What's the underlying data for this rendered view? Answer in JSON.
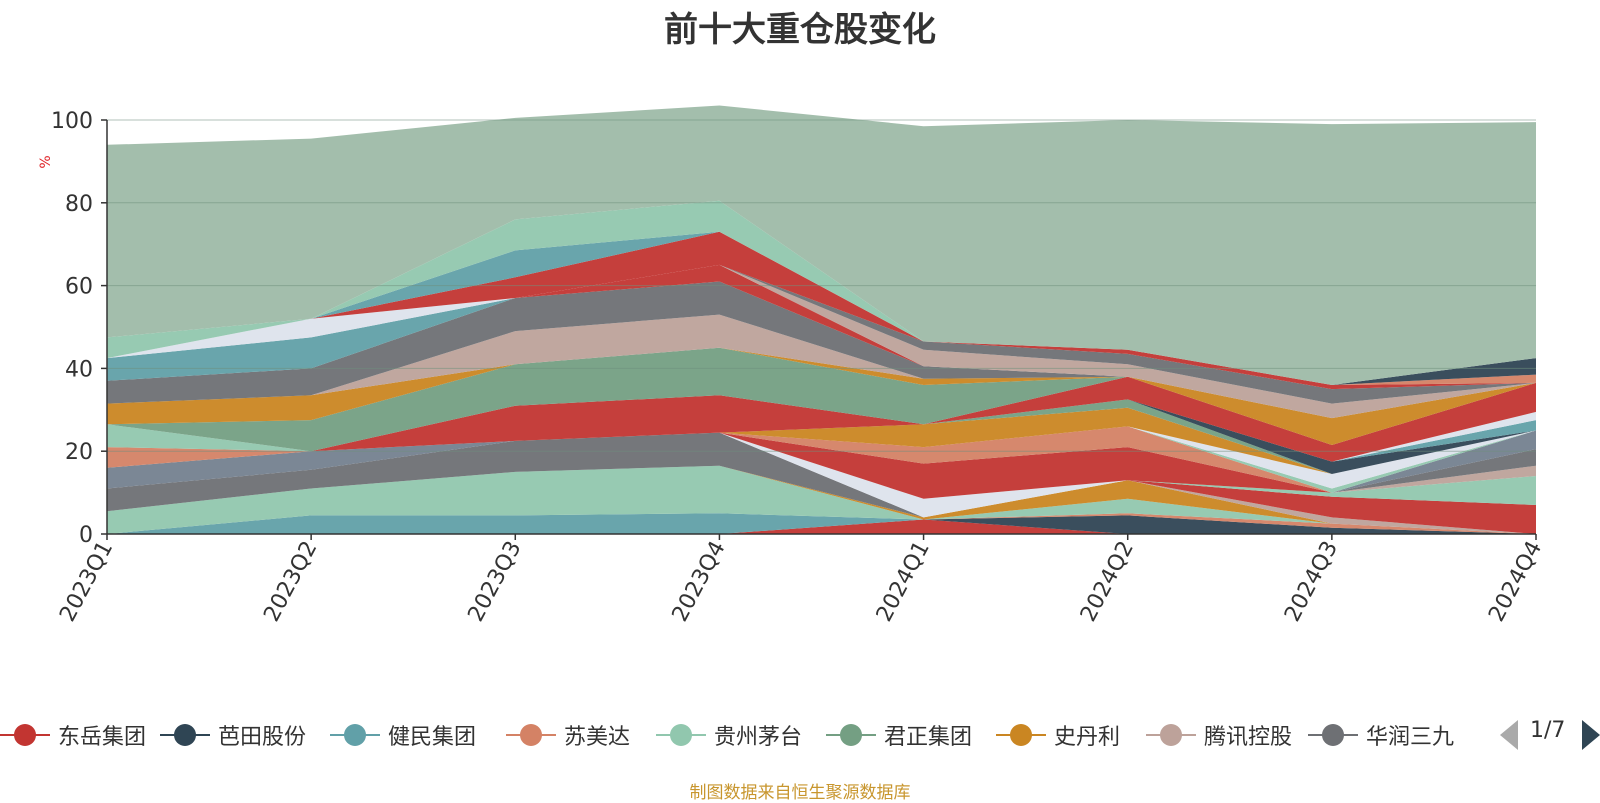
{
  "title": "前十大重仓股变化",
  "source_note": "制图数据来自恒生聚源数据库",
  "pager": {
    "text": "1/7"
  },
  "legend_items": [
    {
      "label": "东岳集团",
      "color": "#c23531"
    },
    {
      "label": "芭田股份",
      "color": "#2f4554"
    },
    {
      "label": "健民集团",
      "color": "#61a0a8"
    },
    {
      "label": "苏美达",
      "color": "#d48265"
    },
    {
      "label": "贵州茅台",
      "color": "#91c7ae"
    },
    {
      "label": "君正集团",
      "color": "#749f83"
    },
    {
      "label": "史丹利",
      "color": "#ca8622"
    },
    {
      "label": "腾讯控股",
      "color": "#bda29a"
    },
    {
      "label": "华润三九",
      "color": "#6e7074"
    }
  ],
  "chart_data": {
    "type": "area",
    "stacked": true,
    "title": "前十大重仓股变化",
    "ylabel": "%",
    "ylim": [
      0,
      100
    ],
    "yticks": [
      0,
      20,
      40,
      60,
      80,
      100
    ],
    "categories": [
      "2023Q1",
      "2023Q2",
      "2023Q3",
      "2023Q4",
      "2024Q1",
      "2024Q2",
      "2024Q3",
      "2024Q4"
    ],
    "bands": [
      {
        "color": "#c23531",
        "values": [
          0,
          0,
          0,
          0,
          3.5,
          0,
          0,
          0
        ]
      },
      {
        "color": "#2f4554",
        "values": [
          0,
          0,
          0,
          0,
          0,
          4.5,
          1.5,
          0
        ]
      },
      {
        "color": "#61a0a8",
        "values": [
          0,
          4.5,
          4.5,
          5,
          0,
          0,
          0,
          0
        ]
      },
      {
        "color": "#d48265",
        "values": [
          0,
          0,
          0,
          0,
          0,
          0.5,
          1,
          0
        ]
      },
      {
        "color": "#91c7ae",
        "values": [
          5.5,
          6.5,
          10.5,
          11.5,
          0,
          3.5,
          0,
          0
        ]
      },
      {
        "color": "#ca8622",
        "values": [
          0,
          0,
          0,
          0,
          0.5,
          4.5,
          0,
          0
        ]
      },
      {
        "color": "#bda29a",
        "values": [
          0,
          0,
          0,
          0,
          0,
          0,
          1.5,
          0
        ]
      },
      {
        "color": "#c23531",
        "values": [
          0,
          0,
          0,
          0,
          0,
          0,
          5,
          7
        ]
      },
      {
        "color": "#91c7ae",
        "values": [
          0,
          0,
          0,
          0,
          0,
          0,
          1,
          7
        ]
      },
      {
        "color": "#bda29a",
        "values": [
          0,
          0,
          0,
          0,
          0,
          0,
          0,
          2.5
        ]
      },
      {
        "color": "#6e7074",
        "values": [
          5.5,
          4.5,
          7.5,
          8,
          0,
          0,
          0,
          4
        ]
      },
      {
        "color": "#dde3ec",
        "values": [
          0,
          0,
          0,
          0,
          4.5,
          0,
          0,
          0
        ]
      },
      {
        "color": "#c23531",
        "values": [
          0,
          0,
          0,
          0,
          8.5,
          8,
          0,
          0
        ]
      },
      {
        "color": "#d48265",
        "values": [
          0,
          0,
          0,
          0,
          4,
          5,
          0,
          0
        ]
      },
      {
        "color": "#74818f",
        "values": [
          5,
          4.5,
          0,
          0,
          0,
          0,
          0,
          4.5
        ]
      },
      {
        "color": "#91c7ae",
        "values": [
          0,
          0,
          0,
          0,
          0,
          0,
          1,
          0
        ]
      },
      {
        "color": "#dde3ec",
        "values": [
          0,
          0,
          0,
          0,
          0,
          0,
          3.5,
          0
        ]
      },
      {
        "color": "#d48265",
        "values": [
          5,
          0,
          0,
          0,
          0,
          0,
          0,
          0
        ]
      },
      {
        "color": "#ca8622",
        "values": [
          0,
          0,
          0,
          0,
          5.5,
          4.5,
          0,
          0
        ]
      },
      {
        "color": "#749f83",
        "values": [
          0,
          0,
          0,
          0,
          0,
          2,
          0,
          0
        ]
      },
      {
        "color": "#2f4554",
        "values": [
          0,
          0,
          0,
          0,
          0,
          0,
          3,
          0
        ]
      },
      {
        "color": "#61a0a8",
        "values": [
          0,
          0,
          0,
          0,
          0,
          0,
          0,
          2.5
        ]
      },
      {
        "color": "#c23531",
        "values": [
          0,
          0,
          8.5,
          9,
          0,
          0,
          0,
          0
        ]
      },
      {
        "color": "#dde3ec",
        "values": [
          0,
          0,
          0,
          0,
          0,
          0,
          0,
          2
        ]
      },
      {
        "color": "#c23531",
        "values": [
          0,
          0,
          0,
          0,
          0,
          5.5,
          4,
          7
        ]
      },
      {
        "color": "#91c7ae",
        "values": [
          5.5,
          0,
          0,
          0,
          0,
          0,
          0,
          0
        ]
      },
      {
        "color": "#ca8622",
        "values": [
          0,
          0,
          0,
          0,
          0,
          0,
          6.5,
          0
        ]
      },
      {
        "color": "#749f83",
        "values": [
          0,
          7.5,
          10,
          11.5,
          9.5,
          0,
          0,
          0
        ]
      },
      {
        "color": "#ca8622",
        "values": [
          5,
          6,
          0,
          0,
          1.5,
          0,
          0,
          0
        ]
      },
      {
        "color": "#bda29a",
        "values": [
          0,
          0,
          8,
          8,
          0,
          0,
          0,
          0
        ]
      },
      {
        "color": "#6e7074",
        "values": [
          5.5,
          6.5,
          8,
          8,
          3,
          0,
          0,
          0
        ]
      },
      {
        "color": "#c23531",
        "values": [
          0,
          0,
          0,
          4,
          0,
          0,
          0,
          0
        ]
      },
      {
        "color": "#61a0a8",
        "values": [
          0,
          0,
          0,
          0,
          0,
          0,
          0,
          0
        ]
      },
      {
        "color": "#bda29a",
        "values": [
          0,
          0,
          0,
          0,
          4,
          3,
          3.5,
          0
        ]
      },
      {
        "color": "#6e7074",
        "values": [
          0,
          0,
          0,
          0,
          2,
          2.5,
          3.5,
          0
        ]
      },
      {
        "color": "#c23531",
        "values": [
          0,
          0,
          0,
          0,
          0,
          1,
          1,
          0
        ]
      },
      {
        "color": "#d48265",
        "values": [
          0,
          0,
          0,
          0,
          0,
          0,
          0,
          2
        ]
      },
      {
        "color": "#2f4554",
        "values": [
          0,
          0,
          0,
          0,
          0,
          0,
          0,
          4
        ]
      },
      {
        "color": "#61a0a8",
        "values": [
          5.5,
          7.5,
          0,
          0,
          0,
          0,
          0,
          0
        ]
      },
      {
        "color": "#dde3ec",
        "values": [
          0,
          4.5,
          0,
          0,
          0,
          0,
          0,
          0
        ]
      },
      {
        "color": "#c23531",
        "values": [
          0,
          0,
          5,
          8,
          0,
          0,
          0,
          0
        ]
      },
      {
        "color": "#61a0a8",
        "values": [
          0,
          0,
          6.5,
          0,
          0,
          0,
          0,
          0
        ]
      },
      {
        "color": "#91c7ae",
        "values": [
          5,
          0,
          7.5,
          7.5,
          0,
          0,
          0,
          0
        ]
      },
      {
        "color": "#9ebaa8",
        "values": [
          46.5,
          43.5,
          24.5,
          23,
          52,
          55.5,
          63,
          57
        ]
      }
    ]
  }
}
